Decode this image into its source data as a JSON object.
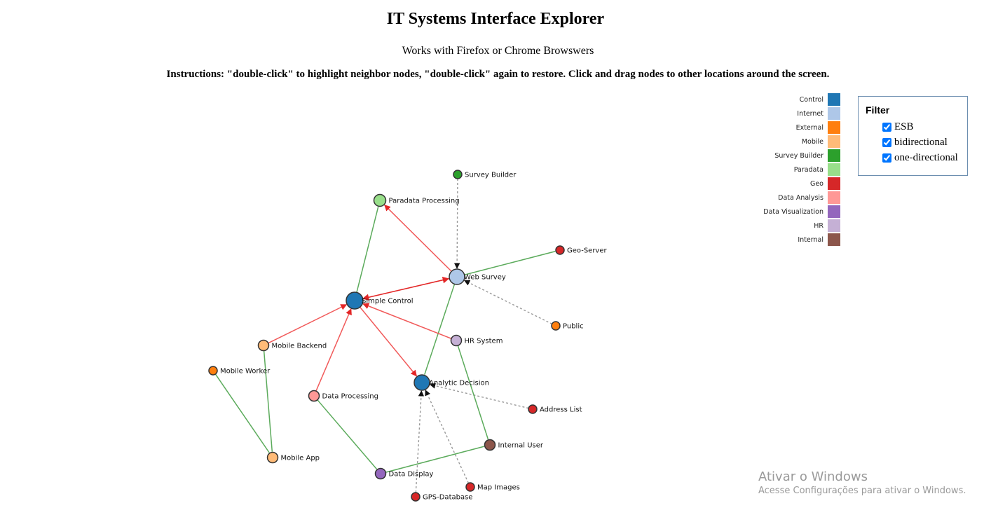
{
  "header": {
    "title": "IT Systems Interface Explorer",
    "subtitle": "Works with Firefox or Chrome Browswers",
    "instructions": "Instructions: \"double-click\" to highlight neighbor nodes, \"double-click\" again to restore. Click and drag nodes to other locations around the screen."
  },
  "legend": [
    {
      "label": "Control",
      "color": "#1f77b4"
    },
    {
      "label": "Internet",
      "color": "#aec7e8"
    },
    {
      "label": "External",
      "color": "#ff7f0e"
    },
    {
      "label": "Mobile",
      "color": "#ffbb78"
    },
    {
      "label": "Survey Builder",
      "color": "#2ca02c"
    },
    {
      "label": "Paradata",
      "color": "#98df8a"
    },
    {
      "label": "Geo",
      "color": "#d62728"
    },
    {
      "label": "Data Analysis",
      "color": "#ff9896"
    },
    {
      "label": "Data Visualization",
      "color": "#9467bd"
    },
    {
      "label": "HR",
      "color": "#c5b0d5"
    },
    {
      "label": "Internal",
      "color": "#8c564b"
    }
  ],
  "filter": {
    "title": "Filter",
    "options": [
      {
        "label": "ESB",
        "checked": true
      },
      {
        "label": "bidirectional",
        "checked": true
      },
      {
        "label": "one-directional",
        "checked": true
      }
    ]
  },
  "edge_colors": {
    "esb": "#999999",
    "bidirectional": "#5cab5c",
    "one_directional": "#f15a5a",
    "strong": "#e32626"
  },
  "nodes": [
    {
      "id": "survey-builder",
      "label": "Survey Builder",
      "group": "Survey Builder"
    },
    {
      "id": "paradata-processing",
      "label": "Paradata Processing",
      "group": "Paradata"
    },
    {
      "id": "geo-server",
      "label": "Geo-Server",
      "group": "Geo"
    },
    {
      "id": "web-survey",
      "label": "Web Survey",
      "group": "Internet"
    },
    {
      "id": "simple-control",
      "label": "Simple Control",
      "group": "Control"
    },
    {
      "id": "public",
      "label": "Public",
      "group": "External"
    },
    {
      "id": "hr-system",
      "label": "HR System",
      "group": "HR"
    },
    {
      "id": "mobile-backend",
      "label": "Mobile Backend",
      "group": "Mobile"
    },
    {
      "id": "mobile-worker",
      "label": "Mobile Worker",
      "group": "External"
    },
    {
      "id": "analytic-decision",
      "label": "Analytic Decision",
      "group": "Control"
    },
    {
      "id": "data-processing",
      "label": "Data Processing",
      "group": "Data Analysis"
    },
    {
      "id": "address-list",
      "label": "Address List",
      "group": "Geo"
    },
    {
      "id": "internal-user",
      "label": "Internal User",
      "group": "Internal"
    },
    {
      "id": "mobile-app",
      "label": "Mobile App",
      "group": "Mobile"
    },
    {
      "id": "data-display",
      "label": "Data Display",
      "group": "Data Visualization"
    },
    {
      "id": "map-images",
      "label": "Map Images",
      "group": "Geo"
    },
    {
      "id": "gps-database",
      "label": "GPS-Database",
      "group": "Geo"
    }
  ],
  "links": [
    {
      "source": "survey-builder",
      "target": "web-survey",
      "type": "esb"
    },
    {
      "source": "public",
      "target": "web-survey",
      "type": "esb"
    },
    {
      "source": "address-list",
      "target": "analytic-decision",
      "type": "esb"
    },
    {
      "source": "map-images",
      "target": "analytic-decision",
      "type": "esb"
    },
    {
      "source": "gps-database",
      "target": "analytic-decision",
      "type": "esb"
    },
    {
      "source": "web-survey",
      "target": "geo-server",
      "type": "bidirectional"
    },
    {
      "source": "web-survey",
      "target": "analytic-decision",
      "type": "bidirectional"
    },
    {
      "source": "simple-control",
      "target": "paradata-processing",
      "type": "bidirectional"
    },
    {
      "source": "hr-system",
      "target": "internal-user",
      "type": "bidirectional"
    },
    {
      "source": "mobile-backend",
      "target": "mobile-app",
      "type": "bidirectional"
    },
    {
      "source": "mobile-worker",
      "target": "mobile-app",
      "type": "bidirectional"
    },
    {
      "source": "data-processing",
      "target": "data-display",
      "type": "bidirectional"
    },
    {
      "source": "data-display",
      "target": "internal-user",
      "type": "bidirectional"
    },
    {
      "source": "web-survey",
      "target": "paradata-processing",
      "type": "one-directional"
    },
    {
      "source": "mobile-backend",
      "target": "simple-control",
      "type": "one-directional"
    },
    {
      "source": "data-processing",
      "target": "simple-control",
      "type": "one-directional"
    },
    {
      "source": "hr-system",
      "target": "simple-control",
      "type": "one-directional"
    },
    {
      "source": "simple-control",
      "target": "analytic-decision",
      "type": "one-directional"
    },
    {
      "source": "simple-control",
      "target": "web-survey",
      "type": "one-directional-both"
    }
  ],
  "watermark": {
    "title": "Ativar o Windows",
    "subtitle": "Acesse Configurações para ativar o Windows."
  }
}
